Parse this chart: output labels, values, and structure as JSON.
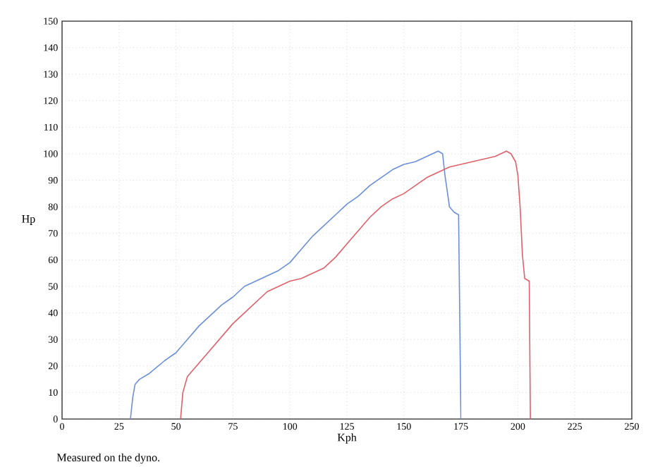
{
  "chart_data": {
    "type": "line",
    "xlabel": "Kph",
    "ylabel": "Hp",
    "annotations": [
      "Measured on the dyno."
    ],
    "xlim": [
      0,
      250
    ],
    "xticks": [
      0,
      25,
      50,
      75,
      100,
      125,
      150,
      175,
      200,
      225,
      250
    ],
    "ylim": [
      0,
      150
    ],
    "yticks": [
      0,
      10,
      20,
      30,
      40,
      50,
      60,
      70,
      80,
      90,
      100,
      110,
      120,
      130,
      140,
      150
    ],
    "grid": true,
    "line_style": "solid",
    "series": [
      {
        "color": "#6a8fd8",
        "x": [
          30,
          31,
          32,
          34,
          38,
          45,
          50,
          55,
          60,
          65,
          70,
          75,
          80,
          85,
          90,
          95,
          100,
          105,
          110,
          115,
          120,
          125,
          130,
          135,
          140,
          145,
          150,
          155,
          160,
          165,
          167,
          168,
          170,
          172,
          174,
          175
        ],
        "values": [
          0,
          8,
          13,
          15,
          17,
          22,
          25,
          30,
          35,
          39,
          43,
          46,
          50,
          52,
          54,
          56,
          59,
          64,
          69,
          73,
          77,
          81,
          84,
          88,
          91,
          94,
          96,
          97,
          99,
          101,
          100,
          92,
          80,
          78,
          77,
          0
        ]
      },
      {
        "color": "#e0606a",
        "x": [
          52,
          53,
          55,
          58,
          65,
          70,
          75,
          80,
          85,
          90,
          95,
          100,
          105,
          110,
          115,
          120,
          125,
          130,
          135,
          140,
          145,
          150,
          155,
          160,
          165,
          170,
          175,
          180,
          185,
          190,
          195,
          197,
          199,
          200,
          201,
          202,
          203,
          205,
          205.5
        ],
        "values": [
          0,
          10,
          16,
          19,
          26,
          31,
          36,
          40,
          44,
          48,
          50,
          52,
          53,
          55,
          57,
          61,
          66,
          71,
          76,
          80,
          83,
          85,
          88,
          91,
          93,
          95,
          96,
          97,
          98,
          99,
          101,
          100,
          97,
          92,
          80,
          62,
          53,
          52,
          0
        ]
      }
    ]
  }
}
